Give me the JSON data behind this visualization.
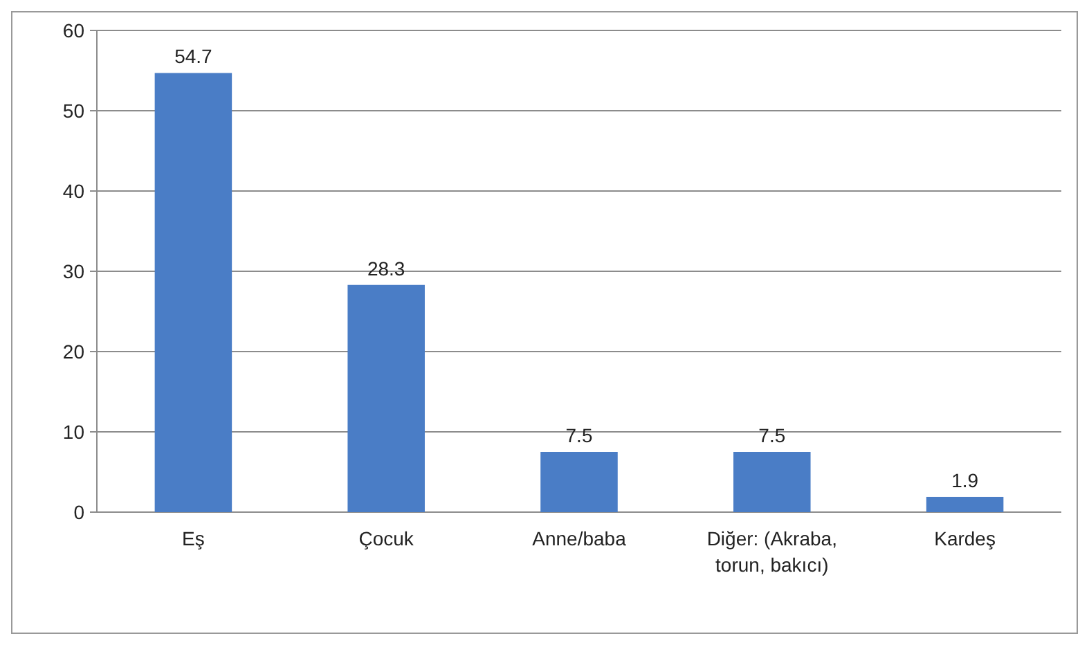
{
  "chart_data": {
    "type": "bar",
    "categories": [
      "Eş",
      "Çocuk",
      "Anne/baba",
      "Diğer: (Akraba, torun, bakıcı)",
      "Kardeş"
    ],
    "values": [
      54.7,
      28.3,
      7.5,
      7.5,
      1.9
    ],
    "color": "#4a7dc6",
    "ylim": [
      0,
      60
    ],
    "yticks": [
      0,
      10,
      20,
      30,
      40,
      50,
      60
    ],
    "grid": "y",
    "data_labels": true
  }
}
